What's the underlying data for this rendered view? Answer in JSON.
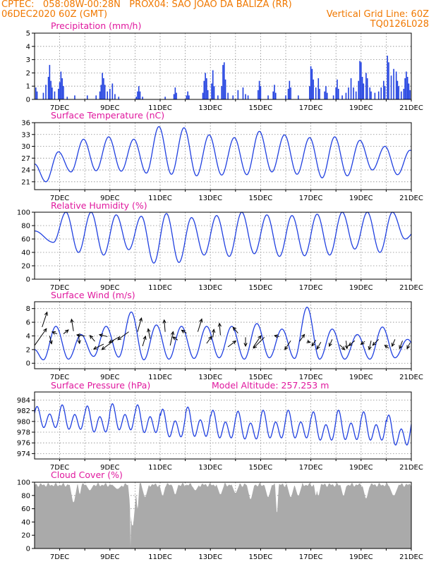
{
  "header": {
    "line1_left": "CPTEC:   058:08W-00:28N   PROX04: SAO JOAO DA BALIZA (RR)",
    "line2_left": "06DEC2020 60Z (GMT)",
    "line2_right": "Vertical Grid Line: 60Z",
    "line3_right": "TQ0126L028"
  },
  "colors": {
    "series": "#2040e0",
    "title": "#e0189e",
    "header": "#f07800",
    "cloud": "#aaaaaa",
    "arrow": "#000000"
  },
  "chart_data": [
    {
      "type": "bar",
      "title": "Precipitation (mm/h)",
      "x_tick_labels": [
        "7DEC",
        "9DEC",
        "11DEC",
        "13DEC",
        "15DEC",
        "17DEC",
        "19DEC",
        "21DEC"
      ],
      "x_unit": "day offset from 06DEC2020 00Z",
      "xlim": [
        0,
        15
      ],
      "ylim": [
        0,
        5
      ],
      "y_ticks": [
        0,
        1,
        2,
        3,
        4,
        5
      ],
      "grid": true,
      "events": [
        [
          0.05,
          0.9
        ],
        [
          0.1,
          0.6
        ],
        [
          0.35,
          0.5
        ],
        [
          0.45,
          1.1
        ],
        [
          0.55,
          1.7
        ],
        [
          0.6,
          2.6
        ],
        [
          0.65,
          1.4
        ],
        [
          0.7,
          0.9
        ],
        [
          0.8,
          0.6
        ],
        [
          0.95,
          0.8
        ],
        [
          1.0,
          1.3
        ],
        [
          1.05,
          2.1
        ],
        [
          1.1,
          1.6
        ],
        [
          1.15,
          1.0
        ],
        [
          1.3,
          0.2
        ],
        [
          1.6,
          0.3
        ],
        [
          2.1,
          0.3
        ],
        [
          2.45,
          0.3
        ],
        [
          2.6,
          0.6
        ],
        [
          2.65,
          1.1
        ],
        [
          2.7,
          2.0
        ],
        [
          2.75,
          1.6
        ],
        [
          2.8,
          1.1
        ],
        [
          2.9,
          0.6
        ],
        [
          3.0,
          0.8
        ],
        [
          3.1,
          1.2
        ],
        [
          3.2,
          0.4
        ],
        [
          3.35,
          0.2
        ],
        [
          4.05,
          0.2
        ],
        [
          4.1,
          0.6
        ],
        [
          4.15,
          1.0
        ],
        [
          4.2,
          0.6
        ],
        [
          4.3,
          0.2
        ],
        [
          5.2,
          0.2
        ],
        [
          5.55,
          0.4
        ],
        [
          5.6,
          0.9
        ],
        [
          5.65,
          0.5
        ],
        [
          6.05,
          0.3
        ],
        [
          6.1,
          0.6
        ],
        [
          6.15,
          0.3
        ],
        [
          6.7,
          0.5
        ],
        [
          6.75,
          1.4
        ],
        [
          6.8,
          2.0
        ],
        [
          6.85,
          1.6
        ],
        [
          6.9,
          0.7
        ],
        [
          7.05,
          1.2
        ],
        [
          7.1,
          2.2
        ],
        [
          7.15,
          1.0
        ],
        [
          7.3,
          0.3
        ],
        [
          7.45,
          1.0
        ],
        [
          7.5,
          2.6
        ],
        [
          7.55,
          2.8
        ],
        [
          7.6,
          1.5
        ],
        [
          7.7,
          0.5
        ],
        [
          7.9,
          0.3
        ],
        [
          8.1,
          0.7
        ],
        [
          8.3,
          0.9
        ],
        [
          8.4,
          0.4
        ],
        [
          8.5,
          0.3
        ],
        [
          8.9,
          0.7
        ],
        [
          8.95,
          1.4
        ],
        [
          9.0,
          1.0
        ],
        [
          9.3,
          0.3
        ],
        [
          9.5,
          0.6
        ],
        [
          9.55,
          1.1
        ],
        [
          9.6,
          0.5
        ],
        [
          10.0,
          0.3
        ],
        [
          10.1,
          0.8
        ],
        [
          10.15,
          1.4
        ],
        [
          10.2,
          0.9
        ],
        [
          10.5,
          0.3
        ],
        [
          10.95,
          1.0
        ],
        [
          11.0,
          2.5
        ],
        [
          11.05,
          2.3
        ],
        [
          11.1,
          1.5
        ],
        [
          11.2,
          0.9
        ],
        [
          11.3,
          1.6
        ],
        [
          11.35,
          0.8
        ],
        [
          11.55,
          0.6
        ],
        [
          11.6,
          1.0
        ],
        [
          11.65,
          0.5
        ],
        [
          11.9,
          0.3
        ],
        [
          12.0,
          0.9
        ],
        [
          12.05,
          1.5
        ],
        [
          12.1,
          0.8
        ],
        [
          12.25,
          0.3
        ],
        [
          12.4,
          0.5
        ],
        [
          12.5,
          0.9
        ],
        [
          12.6,
          1.6
        ],
        [
          12.7,
          0.9
        ],
        [
          12.8,
          0.6
        ],
        [
          12.9,
          1.4
        ],
        [
          12.95,
          2.9
        ],
        [
          13.0,
          2.8
        ],
        [
          13.05,
          1.7
        ],
        [
          13.1,
          1.2
        ],
        [
          13.2,
          2.0
        ],
        [
          13.25,
          1.6
        ],
        [
          13.35,
          0.9
        ],
        [
          13.4,
          0.6
        ],
        [
          13.55,
          0.5
        ],
        [
          13.7,
          0.6
        ],
        [
          13.8,
          0.9
        ],
        [
          13.9,
          1.4
        ],
        [
          13.95,
          1.0
        ],
        [
          14.05,
          3.3
        ],
        [
          14.1,
          2.8
        ],
        [
          14.2,
          1.8
        ],
        [
          14.3,
          2.3
        ],
        [
          14.4,
          2.1
        ],
        [
          14.45,
          1.4
        ],
        [
          14.5,
          1.0
        ],
        [
          14.6,
          0.6
        ],
        [
          14.7,
          0.8
        ],
        [
          14.75,
          1.6
        ],
        [
          14.8,
          2.1
        ],
        [
          14.85,
          1.7
        ],
        [
          14.9,
          1.2
        ],
        [
          14.95,
          0.7
        ]
      ]
    },
    {
      "type": "line",
      "title": "Surface Temperature (nC)",
      "xlim": [
        0,
        15
      ],
      "ylim": [
        19,
        36
      ],
      "y_ticks": [
        21,
        24,
        27,
        30,
        33,
        36
      ],
      "y_tick_labels": [
        "21",
        "24",
        "27",
        "30",
        "33",
        "36"
      ],
      "period_days": 1,
      "daily_min_day_fraction": 0.45,
      "daily": [
        [
          21.0,
          28.6
        ],
        [
          23.5,
          31.8
        ],
        [
          23.8,
          32.4
        ],
        [
          23.7,
          31.8
        ],
        [
          23.2,
          35.0
        ],
        [
          22.9,
          34.7
        ],
        [
          22.5,
          32.9
        ],
        [
          22.7,
          32.2
        ],
        [
          22.8,
          33.8
        ],
        [
          23.5,
          32.9
        ],
        [
          22.9,
          32.2
        ],
        [
          22.0,
          32.4
        ],
        [
          22.5,
          31.5
        ],
        [
          24.0,
          30.0
        ],
        [
          22.8,
          29.0
        ]
      ],
      "start_value": 25.5
    },
    {
      "type": "line",
      "title": "Relative Humidity (%)",
      "xlim": [
        0,
        15
      ],
      "ylim": [
        0,
        100
      ],
      "y_ticks": [
        0,
        20,
        40,
        60,
        80,
        100
      ],
      "y_tick_labels": [
        "0",
        "20",
        "40",
        "60",
        "80",
        "100"
      ],
      "period_days": 1,
      "daily_min_day_fraction": 0.75,
      "daily": [
        [
          55,
          100
        ],
        [
          40,
          100
        ],
        [
          36,
          96
        ],
        [
          44,
          94
        ],
        [
          24,
          98
        ],
        [
          25,
          92
        ],
        [
          36,
          95
        ],
        [
          34,
          100
        ],
        [
          38,
          96
        ],
        [
          34,
          95
        ],
        [
          35,
          97
        ],
        [
          36,
          100
        ],
        [
          45,
          100
        ],
        [
          40,
          100
        ],
        [
          60,
          75
        ]
      ],
      "start_value": 72
    },
    {
      "type": "line",
      "title": "Surface Wind (m/s)",
      "xlim": [
        0,
        15
      ],
      "ylim": [
        -0.8,
        9
      ],
      "y_ticks": [
        0,
        2,
        4,
        6,
        8
      ],
      "y_tick_labels": [
        "0",
        "2",
        "4",
        "6",
        "8"
      ],
      "period_days": 1,
      "daily_min_day_fraction": 0.35,
      "daily": [
        [
          0.5,
          5.4
        ],
        [
          0.6,
          4.2
        ],
        [
          1.0,
          5.4
        ],
        [
          0.9,
          7.5
        ],
        [
          0.5,
          5.6
        ],
        [
          0.6,
          5.4
        ],
        [
          0.7,
          5.4
        ],
        [
          0.8,
          5.4
        ],
        [
          0.6,
          5.8
        ],
        [
          0.8,
          5.0
        ],
        [
          0.7,
          8.2
        ],
        [
          0.6,
          5.0
        ],
        [
          0.6,
          4.2
        ],
        [
          0.6,
          5.3
        ],
        [
          0.8,
          3.5
        ]
      ],
      "start_value": 2.0,
      "vectors": [
        [
          0.0,
          2.6,
          1.2,
          1.7
        ],
        [
          0.3,
          5.3,
          0.5,
          1.5
        ],
        [
          0.6,
          4.0,
          0.2,
          -0.8
        ],
        [
          0.9,
          4.3,
          -0.5,
          0.2
        ],
        [
          1.15,
          4.3,
          0.5,
          0.4
        ],
        [
          1.55,
          4.7,
          -0.2,
          1.2
        ],
        [
          1.75,
          4.2,
          0.1,
          -0.9
        ],
        [
          2.0,
          4.0,
          -0.8,
          0.1
        ],
        [
          2.4,
          3.2,
          -0.5,
          0.6
        ],
        [
          2.75,
          2.8,
          -1.0,
          -0.5
        ],
        [
          2.9,
          3.9,
          -0.8,
          0.2
        ],
        [
          3.15,
          3.3,
          -1.2,
          -0.9
        ],
        [
          3.4,
          3.9,
          -1.1,
          -0.6
        ],
        [
          3.75,
          4.6,
          -1.1,
          -0.8
        ],
        [
          4.1,
          4.6,
          0.4,
          1.4
        ],
        [
          4.3,
          2.5,
          0.3,
          1.0
        ],
        [
          4.6,
          3.6,
          -0.2,
          1.0
        ],
        [
          5.2,
          4.6,
          -0.1,
          1.2
        ],
        [
          5.4,
          2.6,
          0.3,
          1.4
        ],
        [
          5.7,
          3.4,
          -0.5,
          0.3
        ],
        [
          6.05,
          4.4,
          -0.5,
          0.3
        ],
        [
          6.5,
          4.6,
          0.4,
          1.3
        ],
        [
          6.85,
          2.9,
          0.5,
          0.7
        ],
        [
          7.1,
          3.8,
          0.1,
          0.8
        ],
        [
          7.4,
          4.1,
          -0.1,
          1.2
        ],
        [
          7.7,
          2.4,
          0.8,
          0.6
        ],
        [
          8.1,
          4.4,
          -0.5,
          0.6
        ],
        [
          8.4,
          3.8,
          0.0,
          -0.9
        ],
        [
          8.7,
          2.3,
          0.8,
          1.2
        ],
        [
          9.15,
          3.8,
          -1.1,
          -1.1
        ],
        [
          9.75,
          3.9,
          -0.5,
          0.1
        ],
        [
          10.2,
          3.3,
          -0.6,
          -0.9
        ],
        [
          10.55,
          3.2,
          0.5,
          0.7
        ],
        [
          10.85,
          3.2,
          0.3,
          -0.1
        ],
        [
          11.2,
          3.4,
          -0.4,
          -0.6
        ],
        [
          11.4,
          3.1,
          -0.4,
          -0.7
        ],
        [
          11.85,
          3.5,
          -0.3,
          -0.7
        ],
        [
          12.15,
          2.7,
          0.5,
          -0.5
        ],
        [
          12.4,
          3.3,
          0.1,
          -0.8
        ],
        [
          12.75,
          3.3,
          -0.6,
          -0.5
        ],
        [
          13.15,
          3.2,
          -0.4,
          -0.3
        ],
        [
          13.4,
          3.3,
          -0.2,
          -0.9
        ],
        [
          13.7,
          3.5,
          -0.6,
          -0.6
        ],
        [
          14.1,
          2.2,
          -0.4,
          0.3
        ],
        [
          14.35,
          3.5,
          -0.3,
          -0.7
        ],
        [
          14.65,
          3.3,
          -0.3,
          -0.8
        ],
        [
          14.95,
          3.0,
          -0.3,
          -0.6
        ]
      ]
    },
    {
      "type": "line",
      "title": "Surface Pressure (hPa)",
      "annotation": "Model Altitude: 257.253 m",
      "xlim": [
        0,
        15
      ],
      "ylim": [
        973,
        985.5
      ],
      "y_ticks": [
        974,
        976,
        978,
        980,
        982,
        984
      ],
      "y_tick_labels": [
        "974",
        "976",
        "978",
        "980",
        "982",
        "984"
      ],
      "wave": {
        "mean": [
          980.5,
          980.4,
          980.0,
          980.4,
          980.0,
          979.2,
          979.4,
          979.0,
          978.8,
          979.0,
          979.0,
          978.6,
          978.8,
          978.6,
          977.8
        ],
        "semi_amplitude": [
          1.6,
          1.8,
          1.9,
          1.9,
          2.0,
          2.0,
          2.1,
          2.0,
          2.0,
          2.0,
          2.0,
          2.0,
          2.1,
          2.0,
          2.1
        ],
        "diurnal_amplitude": [
          0.7,
          0.9,
          1.0,
          1.0,
          1.1,
          1.1,
          1.2,
          1.1,
          1.1,
          1.1,
          1.1,
          1.2,
          1.2,
          1.2,
          1.3
        ]
      }
    },
    {
      "type": "area",
      "title": "Cloud Cover (%)",
      "xlim": [
        0,
        15
      ],
      "ylim": [
        0,
        100
      ],
      "y_ticks": [
        0,
        20,
        40,
        60,
        80,
        100
      ],
      "y_tick_labels": [
        "0",
        "20",
        "40",
        "60",
        "80",
        "100"
      ],
      "base_level": 96,
      "dips": [
        [
          1.55,
          0.3,
          70
        ],
        [
          1.8,
          0.15,
          82
        ],
        [
          2.2,
          0.3,
          88
        ],
        [
          3.3,
          0.4,
          90
        ],
        [
          3.82,
          0.06,
          2
        ],
        [
          3.9,
          0.35,
          35
        ],
        [
          4.1,
          0.15,
          60
        ],
        [
          4.4,
          0.3,
          78
        ],
        [
          5.1,
          0.25,
          80
        ],
        [
          5.6,
          0.25,
          82
        ],
        [
          6.4,
          0.3,
          88
        ],
        [
          7.4,
          0.3,
          82
        ],
        [
          8.0,
          0.3,
          84
        ],
        [
          8.6,
          0.3,
          75
        ],
        [
          9.3,
          0.3,
          78
        ],
        [
          9.65,
          0.15,
          55
        ],
        [
          10.2,
          0.3,
          78
        ],
        [
          10.5,
          0.3,
          80
        ],
        [
          11.2,
          0.15,
          80
        ],
        [
          11.3,
          0.2,
          80
        ],
        [
          12.3,
          0.25,
          80
        ],
        [
          13.2,
          0.3,
          76
        ],
        [
          14.3,
          0.4,
          80
        ]
      ]
    }
  ],
  "chart_titles": [
    "Precipitation (mm/h)",
    "Surface Temperature (nC)",
    "Relative Humidity (%)",
    "Surface Wind (m/s)",
    "Surface Pressure (hPa)",
    "Cloud Cover (%)"
  ],
  "annotations": {
    "altitude": "Model Altitude: 257.253 m"
  }
}
